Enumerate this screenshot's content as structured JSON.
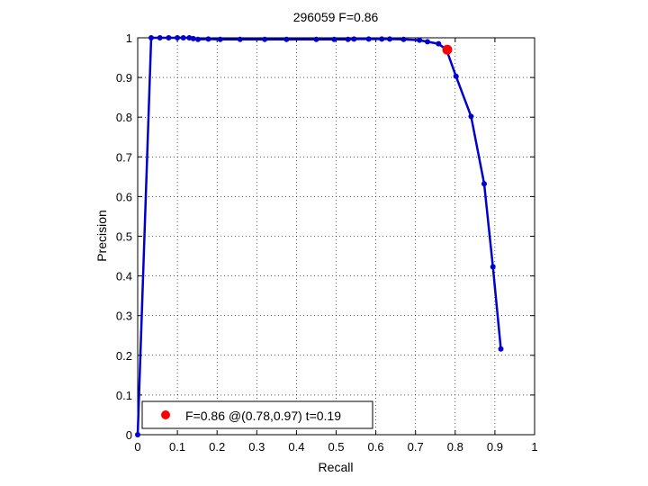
{
  "chart_data": {
    "type": "line",
    "title": "296059 F=0.86",
    "xlabel": "Recall",
    "ylabel": "Precision",
    "xlim": [
      0,
      1
    ],
    "ylim": [
      0,
      1
    ],
    "grid": true,
    "x_ticks": [
      "0",
      "0.1",
      "0.2",
      "0.3",
      "0.4",
      "0.5",
      "0.6",
      "0.7",
      "0.8",
      "0.9",
      "1"
    ],
    "y_ticks": [
      "0",
      "0.1",
      "0.2",
      "0.3",
      "0.4",
      "0.5",
      "0.6",
      "0.7",
      "0.8",
      "0.9",
      "1"
    ],
    "legend_position": "bottom-left",
    "series": [
      {
        "color": "#0000cc",
        "marker": "dot",
        "x": [
          0,
          0.034,
          0.056,
          0.078,
          0.1,
          0.115,
          0.13,
          0.14,
          0.152,
          0.178,
          0.208,
          0.258,
          0.32,
          0.375,
          0.45,
          0.495,
          0.53,
          0.545,
          0.582,
          0.615,
          0.635,
          0.67,
          0.71,
          0.73,
          0.758,
          0.778,
          0.802,
          0.84,
          0.873,
          0.895,
          0.915
        ],
        "y": [
          0,
          1,
          1,
          1,
          1,
          1,
          1,
          0.998,
          0.996,
          0.997,
          0.996,
          0.996,
          0.996,
          0.996,
          0.996,
          0.996,
          0.996,
          0.997,
          0.997,
          0.997,
          0.997,
          0.996,
          0.994,
          0.99,
          0.985,
          0.97,
          0.903,
          0.802,
          0.632,
          0.423,
          0.216
        ]
      }
    ],
    "highlight": {
      "x": 0.78,
      "y": 0.97,
      "color": "#ff0000",
      "label": "F=0.86 @(0.78,0.97) t=0.19"
    }
  }
}
